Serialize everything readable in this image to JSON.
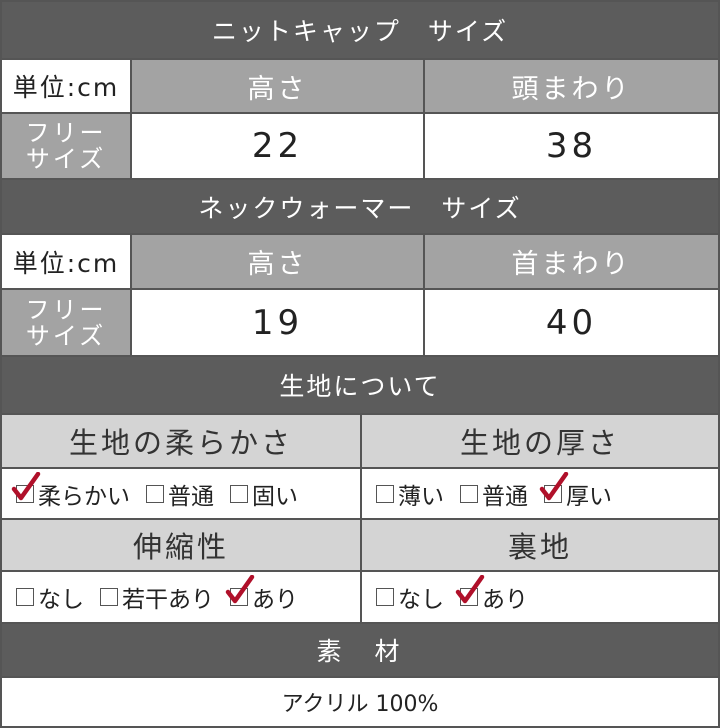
{
  "knit_cap": {
    "title": "ニットキャップ　サイズ",
    "unit": "単位:cm",
    "col1": "高さ",
    "col2": "頭まわり",
    "row_label_1": "フリー",
    "row_label_2": "サイズ",
    "val1": "22",
    "val2": "38"
  },
  "neck_warmer": {
    "title": "ネックウォーマー　サイズ",
    "unit": "単位:cm",
    "col1": "高さ",
    "col2": "首まわり",
    "row_label_1": "フリー",
    "row_label_2": "サイズ",
    "val1": "19",
    "val2": "40"
  },
  "fabric": {
    "title": "生地について",
    "softness": {
      "label": "生地の柔らかさ",
      "options": [
        {
          "label": "柔らかい",
          "checked": true
        },
        {
          "label": "普通",
          "checked": false
        },
        {
          "label": "固い",
          "checked": false
        }
      ]
    },
    "thickness": {
      "label": "生地の厚さ",
      "options": [
        {
          "label": "薄い",
          "checked": false
        },
        {
          "label": "普通",
          "checked": false
        },
        {
          "label": "厚い",
          "checked": true
        }
      ]
    },
    "stretch": {
      "label": "伸縮性",
      "options": [
        {
          "label": "なし",
          "checked": false
        },
        {
          "label": "若干あり",
          "checked": false
        },
        {
          "label": "あり",
          "checked": true
        }
      ]
    },
    "lining": {
      "label": "裏地",
      "options": [
        {
          "label": "なし",
          "checked": false
        },
        {
          "label": "あり",
          "checked": true
        }
      ]
    }
  },
  "material": {
    "title": "素　材",
    "value": "アクリル 100%"
  },
  "colors": {
    "dark": "#5c5c5c",
    "mid": "#a3a3a3",
    "light": "#d4d4d4",
    "check": "#b0102a"
  }
}
